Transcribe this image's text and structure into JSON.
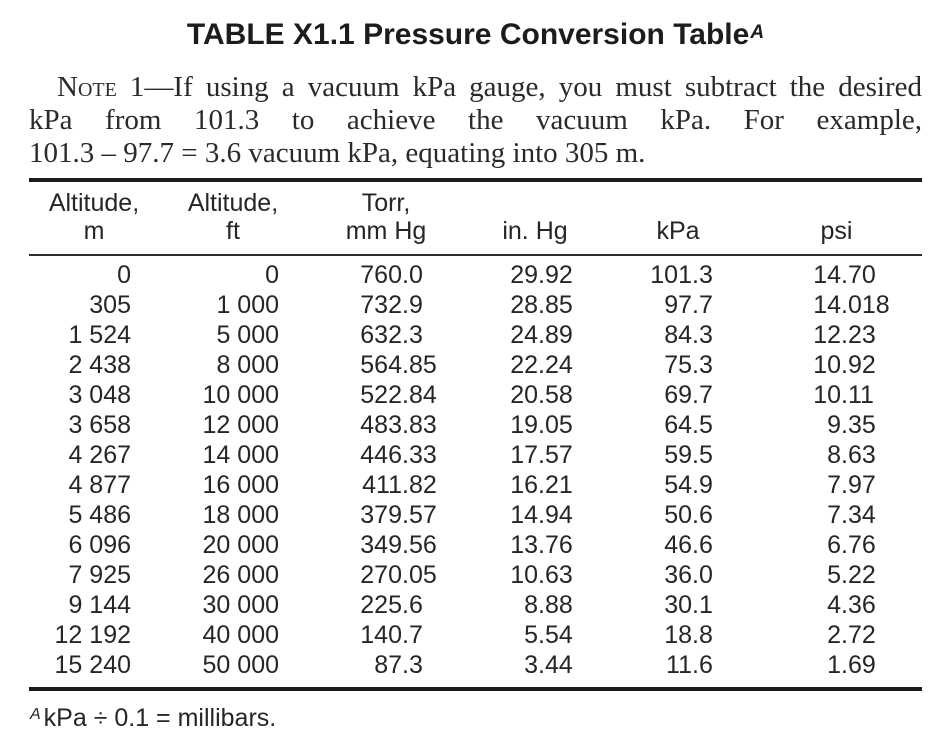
{
  "title": {
    "text": "TABLE X1.1 Pressure Conversion Table",
    "superscript": "A"
  },
  "note": {
    "label": "Note",
    "line1_rest": " 1—If using a vacuum kPa gauge, you must subtract the desired",
    "line2": "kPa from 101.3 to achieve the vacuum kPa. For example,",
    "line3": "101.3 – 97.7 = 3.6 vacuum kPa, equating into 305 m."
  },
  "table": {
    "headers": [
      [
        "Altitude,",
        "m"
      ],
      [
        "Altitude,",
        "ft"
      ],
      [
        "Torr,",
        "mm Hg"
      ],
      [
        "in. Hg"
      ],
      [
        "kPa"
      ],
      [
        "psi"
      ]
    ],
    "rows": [
      [
        "0",
        "0",
        "760.0",
        "29.92",
        "101.3",
        "14.70"
      ],
      [
        "305",
        "1 000",
        "732.9",
        "28.85",
        "97.7",
        "14.018"
      ],
      [
        "1 524",
        "5 000",
        "632.3",
        "24.89",
        "84.3",
        "12.23"
      ],
      [
        "2 438",
        "8 000",
        "564.85",
        "22.24",
        "75.3",
        "10.92"
      ],
      [
        "3 048",
        "10 000",
        "522.84",
        "20.58",
        "69.7",
        "10.11"
      ],
      [
        "3 658",
        "12 000",
        "483.83",
        "19.05",
        "64.5",
        "9.35"
      ],
      [
        "4 267",
        "14 000",
        "446.33",
        "17.57",
        "59.5",
        "8.63"
      ],
      [
        "4 877",
        "16 000",
        "411.82",
        "16.21",
        "54.9",
        "7.97"
      ],
      [
        "5 486",
        "18 000",
        "379.57",
        "14.94",
        "50.6",
        "7.34"
      ],
      [
        "6 096",
        "20 000",
        "349.56",
        "13.76",
        "46.6",
        "6.76"
      ],
      [
        "7 925",
        "26 000",
        "270.05",
        "10.63",
        "36.0",
        "5.22"
      ],
      [
        "9 144",
        "30 000",
        "225.6",
        "8.88",
        "30.1",
        "4.36"
      ],
      [
        "12 192",
        "40 000",
        "140.7",
        "5.54",
        "18.8",
        "2.72"
      ],
      [
        "15 240",
        "50 000",
        "87.3",
        "3.44",
        "11.6",
        "1.69"
      ]
    ]
  },
  "footnote": {
    "superscript": "A",
    "text": "kPa ÷ 0.1 = millibars."
  },
  "colors": {
    "background": "#ffffff",
    "text": "#222222",
    "rule": "#1b1b1b"
  }
}
